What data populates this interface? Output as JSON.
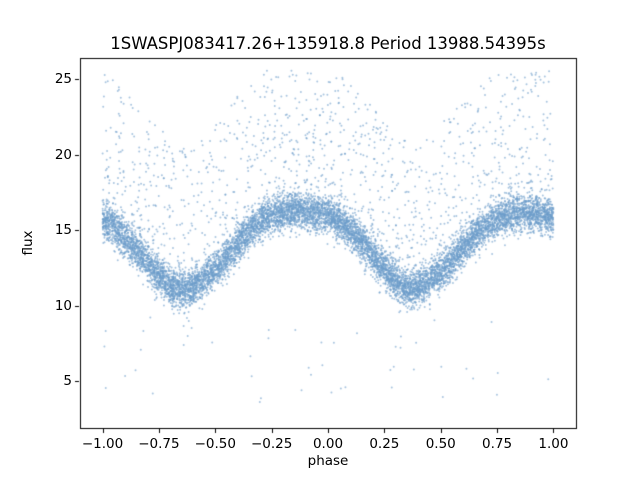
{
  "chart_data": {
    "type": "scatter",
    "title": "1SWASPJ083417.26+135918.8 Period 13988.54395s",
    "xlabel": "phase",
    "ylabel": "flux",
    "xlim": [
      -1.1,
      1.1
    ],
    "ylim": [
      1.9,
      26.4
    ],
    "xtick_values": [
      -1.0,
      -0.75,
      -0.5,
      -0.25,
      0.0,
      0.25,
      0.5,
      0.75,
      1.0
    ],
    "xtick_labels": [
      "−1.00",
      "−0.75",
      "−0.50",
      "−0.25",
      "0.00",
      "0.25",
      "0.50",
      "0.75",
      "1.00"
    ],
    "ytick_values": [
      5,
      10,
      15,
      20,
      25
    ],
    "ytick_labels": [
      "5",
      "10",
      "15",
      "20",
      "25"
    ],
    "grid": false,
    "legend": "none",
    "point_color": "#6d9dc9",
    "point_alpha": 0.6,
    "mean_curve": {
      "phase": [
        -1.0,
        -0.95,
        -0.9,
        -0.85,
        -0.8,
        -0.75,
        -0.7,
        -0.65,
        -0.6,
        -0.55,
        -0.5,
        -0.45,
        -0.4,
        -0.35,
        -0.3,
        -0.25,
        -0.2,
        -0.15,
        -0.1,
        -0.05,
        0.0,
        0.05,
        0.1,
        0.15,
        0.2,
        0.25,
        0.3,
        0.35,
        0.4,
        0.45,
        0.5,
        0.55,
        0.6,
        0.65,
        0.7,
        0.75,
        0.8,
        0.85,
        0.9,
        0.95,
        1.0
      ],
      "flux": [
        15.8,
        15.3,
        14.5,
        13.7,
        12.8,
        12.0,
        11.3,
        11.0,
        11.2,
        11.7,
        12.4,
        13.2,
        14.1,
        14.9,
        15.6,
        16.0,
        16.2,
        16.3,
        16.2,
        16.1,
        16.0,
        15.6,
        15.0,
        14.2,
        13.3,
        12.4,
        11.6,
        11.1,
        11.2,
        11.6,
        12.2,
        13.0,
        13.8,
        14.6,
        15.2,
        15.7,
        16.0,
        16.2,
        16.2,
        16.0,
        15.8
      ]
    },
    "scatter": {
      "seed": 7,
      "n_band": 9500,
      "band_sigma": 0.6,
      "n_upper": 1250,
      "upper_spread": 9.2,
      "upper_cap": 25.6,
      "n_low": 48,
      "low_range": [
        3.6,
        9.8
      ],
      "phase_range": [
        -1.0,
        1.0
      ]
    }
  }
}
